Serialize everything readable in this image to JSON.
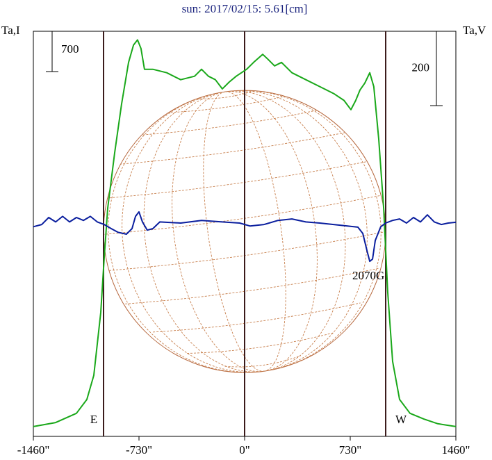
{
  "chart_data": {
    "type": "line",
    "title": "sun: 2017/02/15: 5.61[cm]",
    "ylabel": "Ta,I",
    "y2label": "Ta,V",
    "xlim": [
      -1460,
      1460
    ],
    "xticks": [
      {
        "value": -1460,
        "label": "-1460\""
      },
      {
        "value": -730,
        "label": "-730\""
      },
      {
        "value": 0,
        "label": "0\""
      },
      {
        "value": 730,
        "label": "730\""
      },
      {
        "value": 1460,
        "label": "1460\""
      }
    ],
    "ylim": [
      0,
      7030
    ],
    "y2lim": [
      -570,
      520
    ],
    "scale_bar": 700,
    "scale_bar_y2": 200,
    "limbs": [
      {
        "value": -975,
        "label": "E"
      },
      {
        "value": 975,
        "label": "W"
      }
    ],
    "annotation": {
      "text": "2070G",
      "x": 870
    },
    "series": [
      {
        "name": "I",
        "color": "#1aa81a",
        "x": [
          -1460,
          -1306,
          -1162,
          -1090,
          -1042,
          -994,
          -970,
          -946,
          -898,
          -850,
          -802,
          -768,
          -740,
          -716,
          -692,
          -634,
          -538,
          -442,
          -346,
          -298,
          -250,
          -202,
          -154,
          -106,
          -58,
          14,
          62,
          125,
          159,
          207,
          255,
          327,
          423,
          519,
          615,
          687,
          735,
          768,
          797,
          831,
          865,
          893,
          927,
          961,
          989,
          1023,
          1071,
          1143,
          1239,
          1335,
          1460
        ],
        "values": [
          170,
          240,
          400,
          640,
          1060,
          2150,
          3110,
          3960,
          4920,
          5770,
          6490,
          6790,
          6880,
          6730,
          6370,
          6370,
          6310,
          6190,
          6250,
          6370,
          6250,
          6190,
          6030,
          6150,
          6250,
          6370,
          6490,
          6630,
          6550,
          6430,
          6490,
          6310,
          6190,
          6070,
          5950,
          5830,
          5670,
          5830,
          6010,
          6130,
          6310,
          6070,
          5160,
          3960,
          2510,
          1300,
          640,
          400,
          300,
          220,
          170
        ]
      },
      {
        "name": "V",
        "color": "#0a1e9e",
        "axis": "y2",
        "x": [
          -1460,
          -1402,
          -1354,
          -1306,
          -1258,
          -1210,
          -1162,
          -1114,
          -1066,
          -1018,
          -970,
          -922,
          -874,
          -817,
          -778,
          -754,
          -730,
          -706,
          -673,
          -634,
          -586,
          -442,
          -298,
          -154,
          -34,
          38,
          134,
          231,
          327,
          423,
          519,
          615,
          711,
          783,
          817,
          846,
          865,
          884,
          903,
          941,
          975,
          1023,
          1071,
          1119,
          1167,
          1215,
          1263,
          1311,
          1359,
          1407,
          1460
        ],
        "values": [
          -6,
          0,
          19,
          7,
          22,
          7,
          19,
          11,
          22,
          7,
          0,
          -11,
          -21,
          -26,
          -11,
          22,
          34,
          7,
          -15,
          -11,
          7,
          4,
          11,
          7,
          4,
          -4,
          0,
          11,
          15,
          7,
          4,
          0,
          -4,
          -7,
          -24,
          -71,
          -99,
          -93,
          -43,
          -6,
          4,
          11,
          15,
          4,
          19,
          7,
          26,
          7,
          0,
          4,
          6
        ]
      }
    ]
  }
}
